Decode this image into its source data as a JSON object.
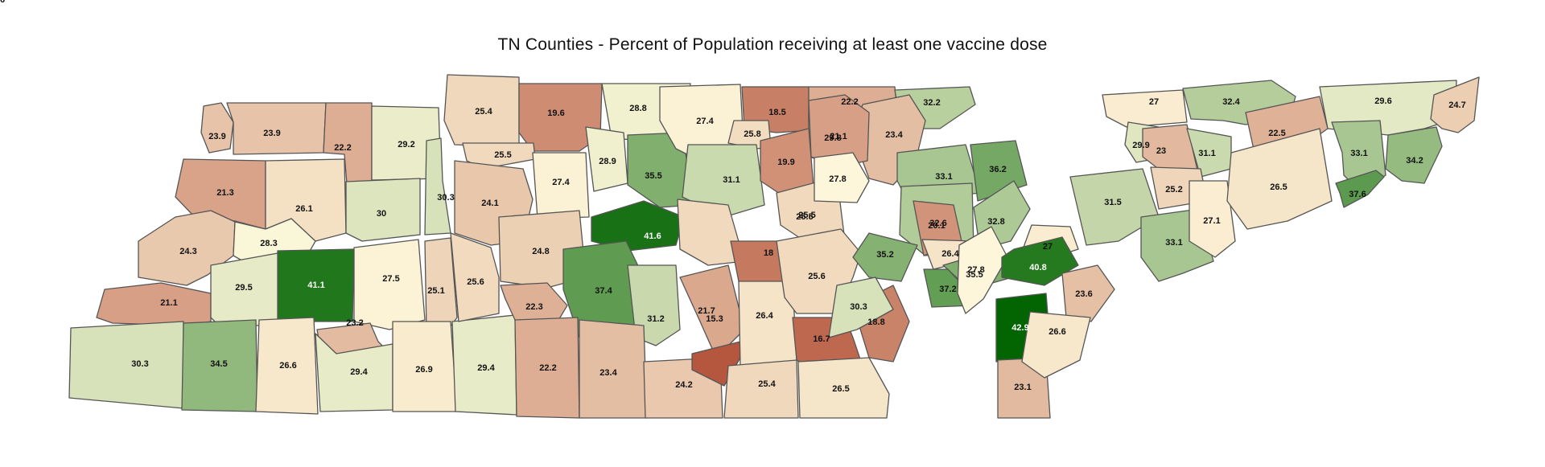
{
  "title": "TN Counties - Percent of Population receiving at least one vaccine dose",
  "color_scale": {
    "low_color": "#b3523a",
    "mid_color": "#fff9dc",
    "high_color": "#006400",
    "low_value": 15,
    "mid_value": 28,
    "high_value": 43,
    "outline_color": "#555555"
  },
  "counties": [
    {
      "value": 23.9
    },
    {
      "value": 23.9
    },
    {
      "value": 22.2
    },
    {
      "value": 29.2
    },
    {
      "value": 21.3
    },
    {
      "value": 26.1
    },
    {
      "value": 30
    },
    {
      "value": 30.3
    },
    {
      "value": 24.3
    },
    {
      "value": 28.3
    },
    {
      "value": 41.1
    },
    {
      "value": 27.5
    },
    {
      "value": 21.1
    },
    {
      "value": 29.5
    },
    {
      "value": 23.2
    },
    {
      "value": 25.1
    },
    {
      "value": 30.3
    },
    {
      "value": 34.5
    },
    {
      "value": 26.6
    },
    {
      "value": 29.4
    },
    {
      "value": 26.9
    },
    {
      "value": 29.4
    },
    {
      "value": 25.4
    },
    {
      "value": 19.6
    },
    {
      "value": 28.8
    },
    {
      "value": 25.5
    },
    {
      "value": 24.1
    },
    {
      "value": 27.4
    },
    {
      "value": 28.9
    },
    {
      "value": 35.5
    },
    {
      "value": 41.6
    },
    {
      "value": 25.6
    },
    {
      "value": 24.8
    },
    {
      "value": 22.3
    },
    {
      "value": 37.4
    },
    {
      "value": 31.2
    },
    {
      "value": 22.2
    },
    {
      "value": 23.4
    },
    {
      "value": 24.2
    },
    {
      "value": 27.4
    },
    {
      "value": 18.5
    },
    {
      "value": 25.8
    },
    {
      "value": 22.2
    },
    {
      "value": 29.8
    },
    {
      "value": 31.1
    },
    {
      "value": 19.9
    },
    {
      "value": 25.5
    },
    {
      "value": 25.5
    },
    {
      "value": 18
    },
    {
      "value": 21.7
    },
    {
      "value": 15.3
    },
    {
      "value": 26.4
    },
    {
      "value": 25.4
    },
    {
      "value": 25.6
    },
    {
      "value": 16.7
    },
    {
      "value": 26.5
    },
    {
      "value": 18.8
    },
    {
      "value": 32.2
    },
    {
      "value": 23.4
    },
    {
      "value": 21.1
    },
    {
      "value": 33.1
    },
    {
      "value": 27.8
    },
    {
      "value": 32.6
    },
    {
      "value": 36.2
    },
    {
      "value": 20.1
    },
    {
      "value": 35.2
    },
    {
      "value": 30.3
    },
    {
      "value": 32.8
    },
    {
      "value": 26.4
    },
    {
      "value": 35.5
    },
    {
      "value": 37.2
    },
    {
      "value": 27.8
    },
    {
      "value": 27
    },
    {
      "value": 40.8
    },
    {
      "value": 42.9
    },
    {
      "value": 23.6
    },
    {
      "value": 23.1
    },
    {
      "value": 26.6
    },
    {
      "value": 27
    },
    {
      "value": 29.9
    },
    {
      "value": 23
    },
    {
      "value": 31.1
    },
    {
      "value": 25.2
    },
    {
      "value": 31.5
    },
    {
      "value": 33.1
    },
    {
      "value": 27.1
    },
    {
      "value": 32.4
    },
    {
      "value": 22.5
    },
    {
      "value": 26.5
    },
    {
      "value": 29.6
    },
    {
      "value": 33.1
    },
    {
      "value": 37.6
    },
    {
      "value": 34.2
    },
    {
      "value": 24.7
    },
    {
      "value": 26
    }
  ]
}
